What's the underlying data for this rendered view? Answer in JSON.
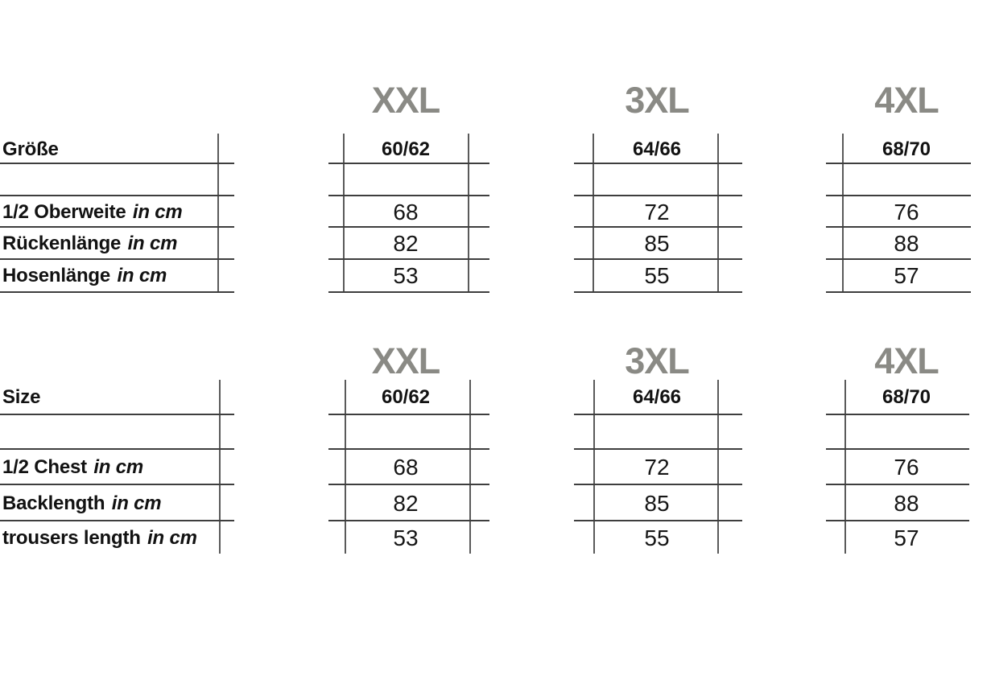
{
  "colors": {
    "header_gray": "#8a8a85",
    "grid_line_horizontal": "#3e3e3e",
    "grid_line_vertical": "#5a5a5a",
    "text": "#121212",
    "background": "#ffffff"
  },
  "chart_data": [
    {
      "type": "table",
      "size_headers": [
        "XXL",
        "3XL",
        "4XL"
      ],
      "size_row": {
        "label": "Größe",
        "values": [
          "60/62",
          "64/66",
          "68/70"
        ]
      },
      "rows": [
        {
          "label": "1/2 Oberweite",
          "unit": "in cm",
          "values": [
            "68",
            "72",
            "76"
          ]
        },
        {
          "label": "Rückenlänge",
          "unit": "in cm",
          "values": [
            "82",
            "85",
            "88"
          ]
        },
        {
          "label": "Hosenlänge",
          "unit": "in cm",
          "values": [
            "53",
            "55",
            "57"
          ]
        }
      ]
    },
    {
      "type": "table",
      "size_headers": [
        "XXL",
        "3XL",
        "4XL"
      ],
      "size_row": {
        "label": "Size",
        "values": [
          "60/62",
          "64/66",
          "68/70"
        ]
      },
      "rows": [
        {
          "label": "1/2 Chest",
          "unit": "in cm",
          "values": [
            "68",
            "72",
            "76"
          ]
        },
        {
          "label": "Backlength",
          "unit": "in cm",
          "values": [
            "82",
            "85",
            "88"
          ]
        },
        {
          "label": "trousers length",
          "unit": "in cm",
          "values": [
            "53",
            "55",
            "57"
          ]
        }
      ]
    }
  ]
}
